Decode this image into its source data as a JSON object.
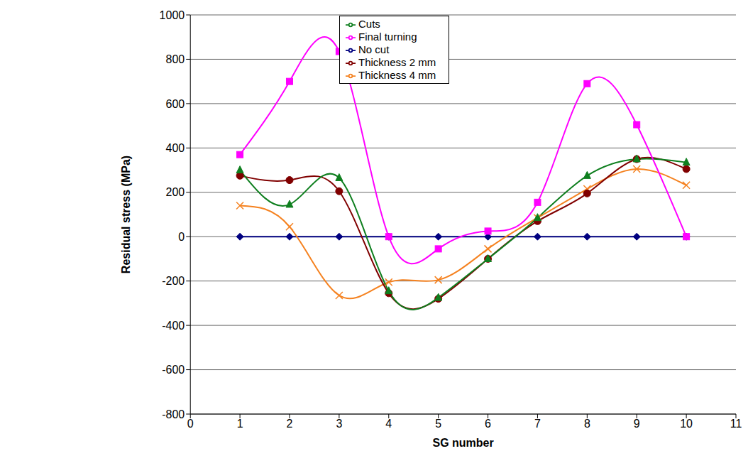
{
  "chart_data": {
    "type": "line",
    "x_label": "SG number",
    "y_label": "Residual stress  (MPa)",
    "x": [
      1,
      2,
      3,
      4,
      5,
      6,
      7,
      8,
      9,
      10
    ],
    "xlim": [
      0,
      11
    ],
    "xticks": [
      0,
      1,
      2,
      3,
      4,
      5,
      6,
      7,
      8,
      9,
      10,
      11
    ],
    "ylim": [
      -800,
      1000
    ],
    "yticks": [
      -800,
      -600,
      -400,
      -200,
      0,
      200,
      400,
      600,
      800,
      1000
    ],
    "grid": true,
    "legend": "top",
    "series": [
      {
        "name": "No cut",
        "color": "#000080",
        "marker": "diamond",
        "line_style": "smooth",
        "values": [
          0,
          0,
          0,
          0,
          0,
          0,
          0,
          0,
          0,
          0
        ]
      },
      {
        "name": "Thickness 4 mm",
        "color": "#f58220",
        "marker": "x",
        "line_style": "smooth",
        "values": [
          140,
          45,
          -265,
          -205,
          -195,
          -55,
          85,
          215,
          305,
          232
        ]
      },
      {
        "name": "Thickness 2 mm",
        "color": "#800000",
        "marker": "circle",
        "line_style": "smooth",
        "values": [
          275,
          255,
          205,
          -255,
          -280,
          -100,
          70,
          195,
          350,
          305
        ]
      },
      {
        "name": "Cuts",
        "color": "#0f7f1f",
        "marker": "triangle",
        "line_style": "smooth",
        "values": [
          300,
          145,
          265,
          -245,
          -275,
          -100,
          85,
          275,
          350,
          335
        ]
      },
      {
        "name": "Final turning",
        "color": "#ff00ff",
        "marker": "square",
        "line_style": "smooth",
        "values": [
          370,
          700,
          835,
          0,
          -55,
          25,
          155,
          690,
          505,
          0
        ]
      }
    ]
  }
}
